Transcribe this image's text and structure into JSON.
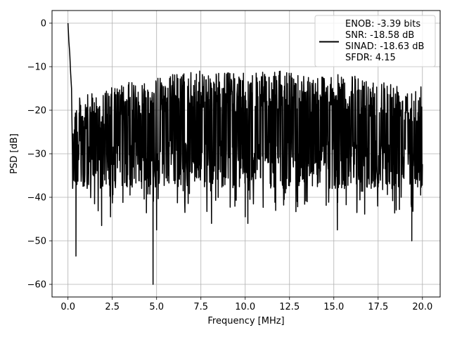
{
  "chart_data": {
    "type": "line",
    "xlabel": "Frequency [MHz]",
    "ylabel": "PSD [dB]",
    "xlim": [
      -0.9,
      21.0
    ],
    "ylim": [
      -62.9,
      2.9
    ],
    "xticks": [
      0.0,
      2.5,
      5.0,
      7.5,
      10.0,
      12.5,
      15.0,
      17.5,
      20.0
    ],
    "xtick_labels": [
      "0.0",
      "2.5",
      "5.0",
      "7.5",
      "10.0",
      "12.5",
      "15.0",
      "17.5",
      "20.0"
    ],
    "yticks": [
      0,
      -10,
      -20,
      -30,
      -40,
      -50,
      -60
    ],
    "ytick_labels": [
      "0",
      "−10",
      "−20",
      "−30",
      "−40",
      "−50",
      "−60"
    ],
    "grid": true,
    "legend_position": "top-right",
    "legend_lines": [
      "ENOB: -3.39 bits",
      "SNR: -18.58 dB",
      "SINAD: -18.63 dB",
      "SFDR: 4.15"
    ],
    "series_color": "#000000",
    "x_range": [
      0.0,
      20.0
    ],
    "peaks": [
      {
        "x": 0.0,
        "y": 0.0
      },
      {
        "x": 0.05,
        "y": -4.2
      },
      {
        "x": 0.1,
        "y": -7.0
      },
      {
        "x": 0.15,
        "y": -11.5
      },
      {
        "x": 0.2,
        "y": -15.0
      }
    ],
    "noise_upper_envelope": [
      {
        "x": 0.3,
        "y": -17.5
      },
      {
        "x": 1.0,
        "y": -16.5
      },
      {
        "x": 2.0,
        "y": -15.5
      },
      {
        "x": 3.0,
        "y": -14.0
      },
      {
        "x": 4.0,
        "y": -13.0
      },
      {
        "x": 5.0,
        "y": -12.5
      },
      {
        "x": 6.0,
        "y": -11.5
      },
      {
        "x": 7.0,
        "y": -11.0
      },
      {
        "x": 8.0,
        "y": -11.0
      },
      {
        "x": 10.0,
        "y": -11.5
      },
      {
        "x": 12.0,
        "y": -11.0
      },
      {
        "x": 14.0,
        "y": -11.5
      },
      {
        "x": 16.0,
        "y": -12.0
      },
      {
        "x": 18.0,
        "y": -13.0
      },
      {
        "x": 19.5,
        "y": -14.0
      },
      {
        "x": 20.0,
        "y": -13.5
      }
    ],
    "noise_mean_level": -23,
    "notable_dips": [
      {
        "x": 0.45,
        "y": -53.5
      },
      {
        "x": 0.85,
        "y": -37.5
      },
      {
        "x": 1.5,
        "y": -41.5
      },
      {
        "x": 1.9,
        "y": -46.5
      },
      {
        "x": 2.4,
        "y": -44.5
      },
      {
        "x": 3.5,
        "y": -39.5
      },
      {
        "x": 4.8,
        "y": -60.0
      },
      {
        "x": 5.0,
        "y": -47.5
      },
      {
        "x": 6.5,
        "y": -38.5
      },
      {
        "x": 8.1,
        "y": -46.0
      },
      {
        "x": 10.0,
        "y": -44.5
      },
      {
        "x": 10.15,
        "y": -46.0
      },
      {
        "x": 12.2,
        "y": -40.5
      },
      {
        "x": 13.5,
        "y": -41.0
      },
      {
        "x": 15.2,
        "y": -47.5
      },
      {
        "x": 16.3,
        "y": -43.5
      },
      {
        "x": 18.8,
        "y": -40.0
      },
      {
        "x": 19.4,
        "y": -50.0
      },
      {
        "x": 19.9,
        "y": -39.5
      }
    ]
  }
}
